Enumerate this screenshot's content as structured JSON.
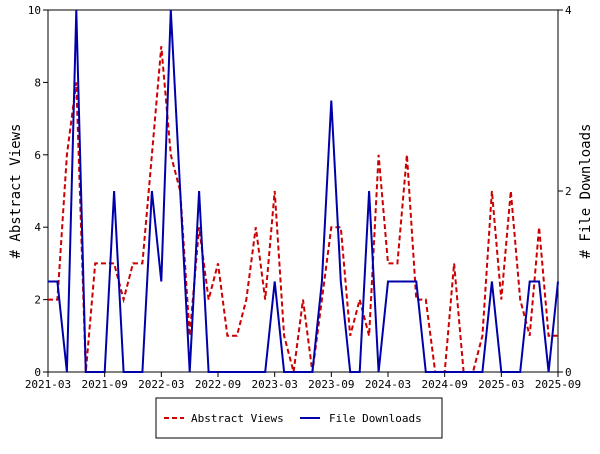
{
  "chart_data": {
    "type": "line",
    "title": "",
    "x_ticks": [
      "2021-03",
      "2021-09",
      "2022-03",
      "2022-09",
      "2023-03",
      "2023-09",
      "2024-03",
      "2024-09",
      "2025-03",
      "2025-09"
    ],
    "x_range": [
      "2021-03",
      "2025-09"
    ],
    "y_left": {
      "label": "# Abstract Views",
      "range": [
        0,
        10
      ],
      "ticks": [
        "0",
        "2",
        "4",
        "6",
        "8",
        "10"
      ]
    },
    "y_right": {
      "label": "# File Downloads",
      "range": [
        0,
        4
      ],
      "ticks": [
        "0",
        "2",
        "4"
      ]
    },
    "x": [
      "2021-03",
      "2021-04",
      "2021-05",
      "2021-06",
      "2021-07",
      "2021-08",
      "2021-09",
      "2021-10",
      "2021-11",
      "2021-12",
      "2022-01",
      "2022-02",
      "2022-03",
      "2022-04",
      "2022-05",
      "2022-06",
      "2022-07",
      "2022-08",
      "2022-09",
      "2022-10",
      "2022-11",
      "2022-12",
      "2023-01",
      "2023-02",
      "2023-03",
      "2023-04",
      "2023-05",
      "2023-06",
      "2023-07",
      "2023-08",
      "2023-09",
      "2023-10",
      "2023-11",
      "2023-12",
      "2024-01",
      "2024-02",
      "2024-03",
      "2024-04",
      "2024-05",
      "2024-06",
      "2024-07",
      "2024-08",
      "2024-09",
      "2024-10",
      "2024-11",
      "2024-12",
      "2025-01",
      "2025-02",
      "2025-03",
      "2025-04",
      "2025-05",
      "2025-06",
      "2025-07",
      "2025-08",
      "2025-09"
    ],
    "series": [
      {
        "name": "Abstract Views",
        "axis": "left",
        "color": "#cc0000",
        "dash": "dashed",
        "values": [
          2,
          2,
          6,
          8,
          0,
          3,
          3,
          3,
          2,
          3,
          3,
          6,
          9,
          6,
          5,
          1,
          4,
          2,
          3,
          1,
          1,
          2,
          4,
          2,
          5,
          1,
          0,
          2,
          0,
          2,
          4,
          4,
          1,
          2,
          1,
          6,
          3,
          3,
          6,
          2,
          2,
          0,
          0,
          3,
          0,
          0,
          1,
          5,
          2,
          5,
          2,
          1,
          4,
          1,
          1
        ]
      },
      {
        "name": "File Downloads",
        "axis": "right",
        "color": "#0000aa",
        "dash": "solid",
        "values": [
          1,
          1,
          0,
          4,
          0,
          0,
          0,
          2,
          0,
          0,
          0,
          2,
          1,
          4,
          2,
          0,
          2,
          0,
          0,
          0,
          0,
          0,
          0,
          0,
          1,
          0,
          0,
          0,
          0,
          1,
          3,
          1,
          0,
          0,
          2,
          0,
          1,
          1,
          1,
          1,
          0,
          0,
          0,
          0,
          0,
          0,
          0,
          1,
          0,
          0,
          0,
          1,
          1,
          0,
          1
        ]
      }
    ],
    "legend": {
      "position": "bottom",
      "items": [
        {
          "label": "Abstract Views",
          "color": "#cc0000",
          "dash": "dashed"
        },
        {
          "label": "File Downloads",
          "color": "#0000aa",
          "dash": "solid"
        }
      ]
    },
    "grid": false
  }
}
